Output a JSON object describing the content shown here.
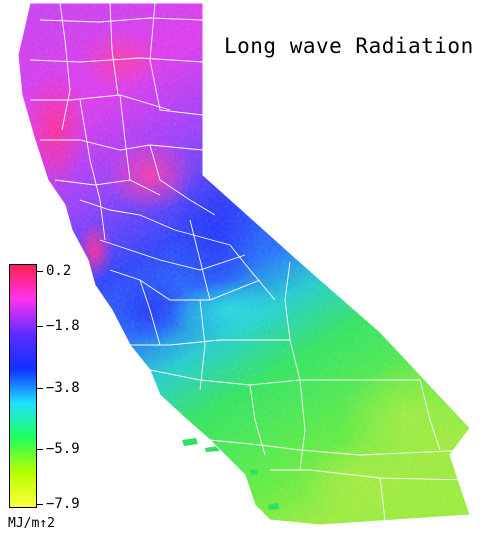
{
  "title": "Long wave Radiation",
  "legend": {
    "units": "MJ/m↑2",
    "ticks": [
      "0.2",
      "−1.8",
      "−3.8",
      "−5.9",
      "−7.9"
    ],
    "colors": [
      "#ff2050",
      "#ff33ee",
      "#5a2cff",
      "#1030ff",
      "#20e0ff",
      "#20ff60",
      "#b8ff00",
      "#ffff40"
    ]
  },
  "map_colors": {
    "north": "#e033f0",
    "north_hot": "#ff2a9a",
    "central_blue": "#2a3cff",
    "sierra": "#1a5cff",
    "transition": "#20d0c0",
    "south_green": "#30e860",
    "desert": "#9cf03a",
    "border_lines": "#ffffff"
  }
}
